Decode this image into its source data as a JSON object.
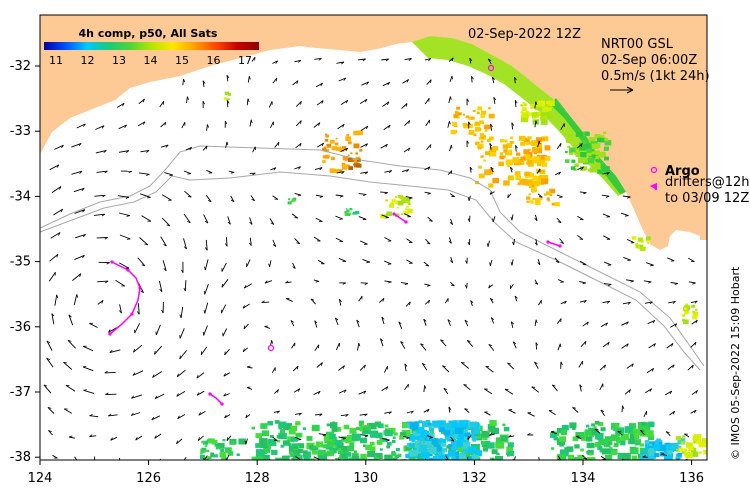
{
  "header": {
    "date": "02-Sep-2022 12Z",
    "product_line1": "NRT00 GSL",
    "product_line2": "02-Sep 06:00Z",
    "scale_label": "0.5m/s (1kt 24h)"
  },
  "colorbar": {
    "title": "4h comp, p50, All Sats",
    "ticks": [
      "11",
      "12",
      "13",
      "14",
      "15",
      "16",
      "17"
    ],
    "colors": [
      "#0000a0",
      "#0050ff",
      "#00c8ff",
      "#1ec878",
      "#50d23c",
      "#b4e600",
      "#ffe600",
      "#ffa000",
      "#ff4600",
      "#c80000",
      "#8b0000"
    ]
  },
  "legend": {
    "argo_label": "Argo",
    "drifters_line1": "drifters@12h",
    "drifters_line2": "to 03/09 12Z"
  },
  "credit": "© IMOS 05-Sep-2022 15:09 Hobart",
  "axes": {
    "x_ticks": [
      "124",
      "126",
      "128",
      "130",
      "132",
      "134",
      "136"
    ],
    "y_ticks": [
      "-32",
      "-33",
      "-34",
      "-35",
      "-36",
      "-37",
      "-38"
    ]
  },
  "colors": {
    "land": "#fdc994",
    "bathymetry": "#a8a8a8",
    "drifter": "#ff00ff"
  }
}
